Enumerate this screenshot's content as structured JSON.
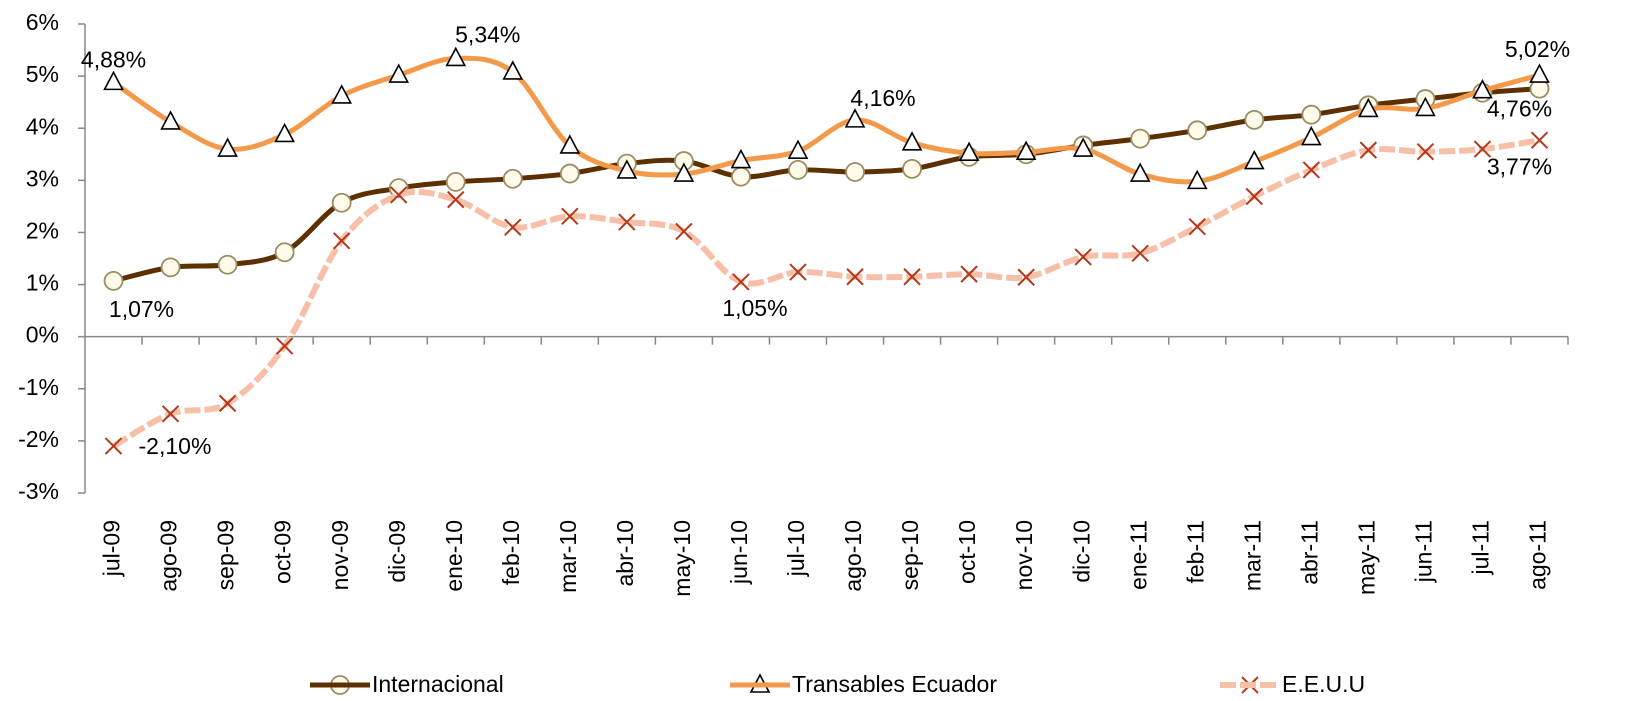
{
  "chart_data": {
    "type": "line",
    "categories": [
      "jul-09",
      "ago-09",
      "sep-09",
      "oct-09",
      "nov-09",
      "dic-09",
      "ene-10",
      "feb-10",
      "mar-10",
      "abr-10",
      "may-10",
      "jun-10",
      "jul-10",
      "ago-10",
      "sep-10",
      "oct-10",
      "nov-10",
      "dic-10",
      "ene-11",
      "feb-11",
      "mar-11",
      "abr-11",
      "may-11",
      "jun-11",
      "jul-11",
      "ago-11"
    ],
    "ylim": [
      -3,
      6
    ],
    "yticks": [
      {
        "value": -3,
        "label": "-3%"
      },
      {
        "value": -2,
        "label": "-2%"
      },
      {
        "value": -1,
        "label": "-1%"
      },
      {
        "value": 0,
        "label": "0%"
      },
      {
        "value": 1,
        "label": "1%"
      },
      {
        "value": 2,
        "label": "2%"
      },
      {
        "value": 3,
        "label": "3%"
      },
      {
        "value": 4,
        "label": "4%"
      },
      {
        "value": 5,
        "label": "5%"
      },
      {
        "value": 6,
        "label": "6%"
      }
    ],
    "grid": false,
    "legend": "bottom",
    "series": [
      {
        "name": "Internacional",
        "color": "#5c3000",
        "marker": "circle",
        "values": [
          1.07,
          1.33,
          1.38,
          1.62,
          2.57,
          2.85,
          2.97,
          3.03,
          3.13,
          3.32,
          3.37,
          3.07,
          3.2,
          3.16,
          3.22,
          3.45,
          3.5,
          3.67,
          3.8,
          3.96,
          4.16,
          4.26,
          4.44,
          4.56,
          4.68,
          4.76
        ],
        "value_labels": [
          "1,07%",
          null,
          null,
          null,
          null,
          null,
          null,
          null,
          null,
          null,
          null,
          null,
          null,
          null,
          null,
          null,
          null,
          null,
          null,
          null,
          null,
          null,
          null,
          null,
          null,
          "4,76%"
        ]
      },
      {
        "name": "Transables Ecuador",
        "color": "#f39a4a",
        "marker": "triangle",
        "values": [
          4.88,
          4.12,
          3.6,
          3.88,
          4.62,
          5.02,
          5.34,
          5.08,
          3.66,
          3.18,
          3.12,
          3.38,
          3.56,
          4.16,
          3.72,
          3.52,
          3.54,
          3.6,
          3.12,
          2.98,
          3.36,
          3.82,
          4.36,
          4.38,
          4.72,
          5.02
        ],
        "value_labels": [
          "4,88%",
          null,
          null,
          null,
          null,
          null,
          "5,34%",
          null,
          null,
          null,
          null,
          null,
          null,
          "4,16%",
          null,
          null,
          null,
          null,
          null,
          null,
          null,
          null,
          null,
          null,
          null,
          "5,02%"
        ]
      },
      {
        "name": "E.E.U.U",
        "color": "#f7bfa8",
        "marker": "x",
        "values": [
          -2.1,
          -1.48,
          -1.28,
          -0.18,
          1.84,
          2.72,
          2.63,
          2.1,
          2.31,
          2.2,
          2.02,
          1.05,
          1.24,
          1.15,
          1.15,
          1.2,
          1.14,
          1.53,
          1.6,
          2.11,
          2.69,
          3.2,
          3.58,
          3.55,
          3.6,
          3.77
        ],
        "value_labels": [
          "-2,10%",
          null,
          null,
          null,
          null,
          null,
          null,
          null,
          null,
          null,
          null,
          "1,05%",
          null,
          null,
          null,
          null,
          null,
          null,
          null,
          null,
          null,
          null,
          null,
          null,
          null,
          "3,77%"
        ]
      }
    ]
  }
}
